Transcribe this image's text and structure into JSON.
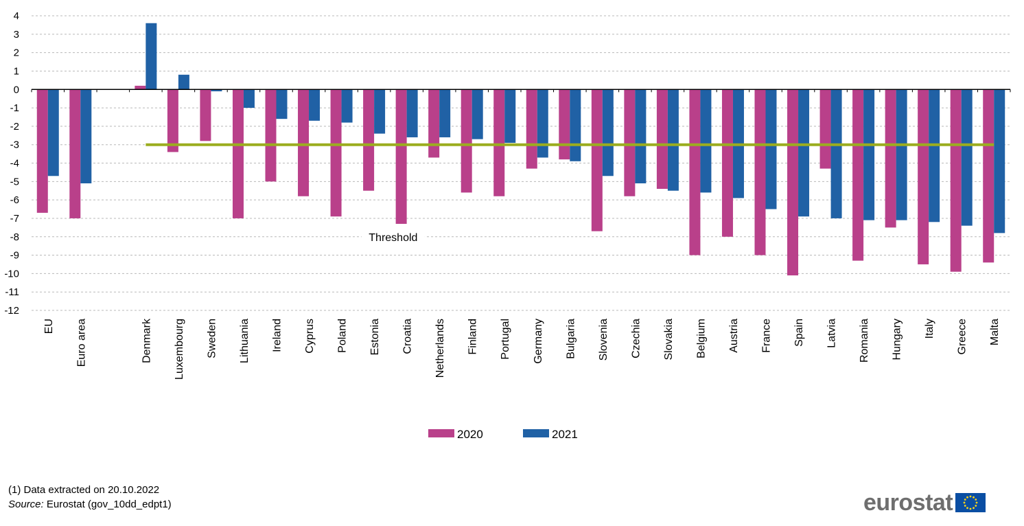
{
  "chart_data": {
    "type": "bar",
    "categories": [
      "EU",
      "Euro area",
      "",
      "Denmark",
      "Luxembourg",
      "Sweden",
      "Lithuania",
      "Ireland",
      "Cyprus",
      "Poland",
      "Estonia",
      "Croatia",
      "Netherlands",
      "Finland",
      "Portugal",
      "Germany",
      "Bulgaria",
      "Slovenia",
      "Czechia",
      "Slovakia",
      "Belgium",
      "Austria",
      "France",
      "Spain",
      "Latvia",
      "Romania",
      "Hungary",
      "Italy",
      "Greece",
      "Malta"
    ],
    "series": [
      {
        "name": "2020",
        "color": "#b9408a",
        "values": [
          -6.7,
          -7.0,
          null,
          0.2,
          -3.4,
          -2.8,
          -7.0,
          -5.0,
          -5.8,
          -6.9,
          -5.5,
          -7.3,
          -3.7,
          -5.6,
          -5.8,
          -4.3,
          -3.8,
          -7.7,
          -5.8,
          -5.4,
          -9.0,
          -8.0,
          -9.0,
          -10.1,
          -4.3,
          -9.3,
          -7.5,
          -9.5,
          -9.9,
          -9.4
        ]
      },
      {
        "name": "2021",
        "color": "#2061a5",
        "values": [
          -4.7,
          -5.1,
          null,
          3.6,
          0.8,
          -0.1,
          -1.0,
          -1.6,
          -1.7,
          -1.8,
          -2.4,
          -2.6,
          -2.6,
          -2.7,
          -2.9,
          -3.7,
          -3.9,
          -4.7,
          -5.1,
          -5.5,
          -5.6,
          -5.9,
          -6.5,
          -6.9,
          -7.0,
          -7.1,
          -7.1,
          -7.2,
          -7.4,
          -7.8
        ]
      }
    ],
    "threshold": {
      "value": -3,
      "label": "Threshold",
      "color": "#9bad1f"
    },
    "ylim": [
      -12,
      4
    ],
    "yticks": [
      4,
      3,
      2,
      1,
      0,
      -1,
      -2,
      -3,
      -4,
      -5,
      -6,
      -7,
      -8,
      -9,
      -10,
      -11,
      -12
    ],
    "grid": true,
    "legend_position": "bottom"
  },
  "footnotes": {
    "note": "(1) Data extracted on 20.10.2022",
    "source_label": "Source:",
    "source_text": " Eurostat (gov_10dd_edpt1)"
  },
  "logo": {
    "text": "eurostat",
    "flag_color": "#0a4ea3",
    "star_color": "#ffd617"
  }
}
